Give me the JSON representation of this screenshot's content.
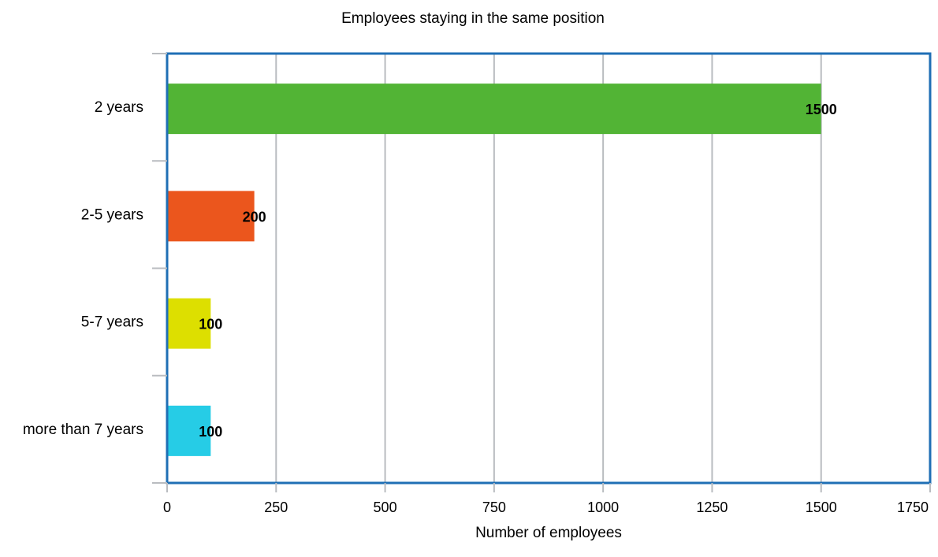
{
  "chart_data": {
    "type": "bar",
    "orientation": "horizontal",
    "title": "Employees staying in the same position",
    "xlabel": "Number of employees",
    "ylabel": "",
    "categories": [
      "2 years",
      "2-5 years",
      "5-7 years",
      "more than 7 years"
    ],
    "values": [
      1500,
      200,
      100,
      100
    ],
    "bar_colors": [
      "#52b435",
      "#eb561d",
      "#dddf00",
      "#26cce6"
    ],
    "xlim": [
      0,
      1750
    ],
    "xticks": [
      0,
      250,
      500,
      750,
      1000,
      1250,
      1500,
      1750
    ],
    "data_labels": true,
    "grid": "vertical",
    "legend": "none"
  },
  "colors": {
    "frame": "#1f6fb5",
    "grid": "#b9bcc0",
    "tick": "#b9bcc0"
  }
}
